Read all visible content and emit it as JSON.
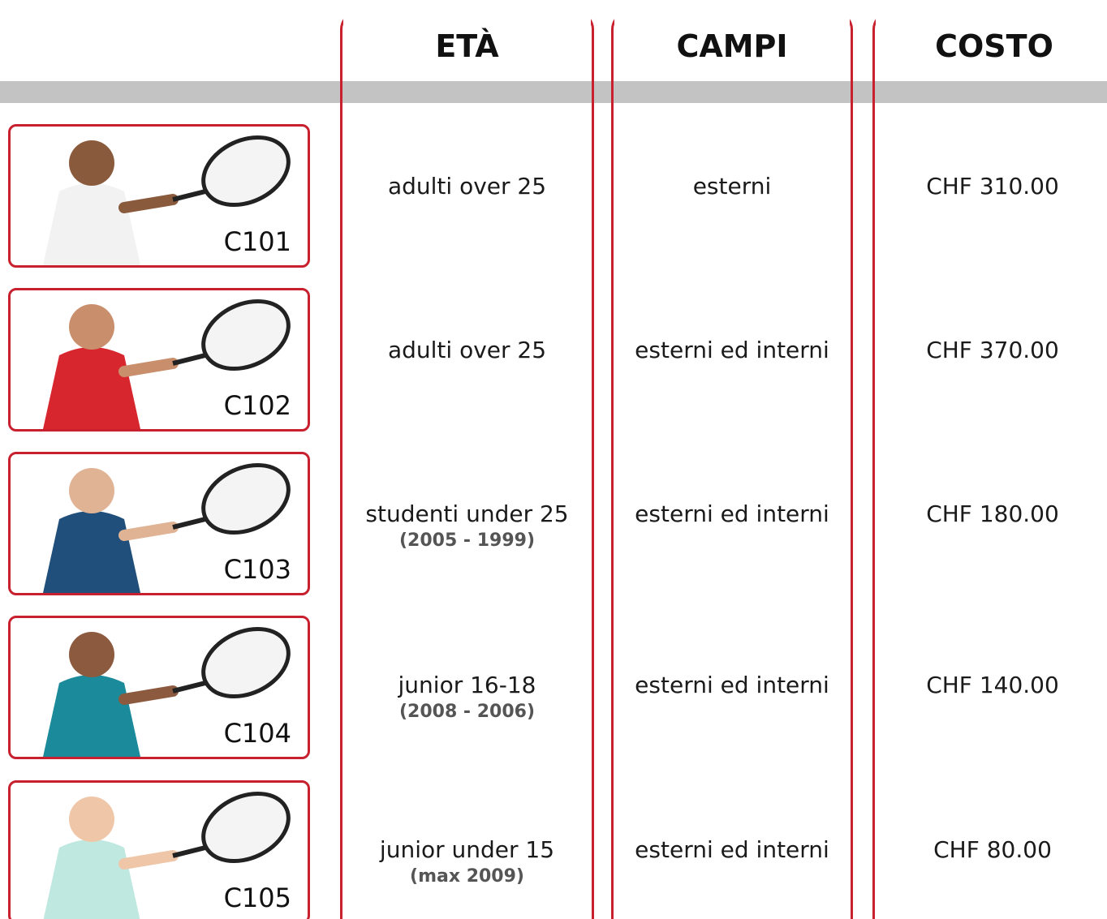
{
  "header": {
    "columns": [
      "ETÀ",
      "CAMPI",
      "COSTO"
    ]
  },
  "rows": [
    {
      "code": "C101",
      "age": "adulti over 25",
      "courts": "esterni",
      "cost": "CHF 310.00"
    },
    {
      "code": "C102",
      "age": "adulti over 25",
      "courts": "esterni ed interni",
      "cost": "CHF 370.00"
    },
    {
      "code": "C103",
      "age": "studenti under 25",
      "age_note": "(2005 - 1999)",
      "courts": "esterni ed interni",
      "cost": "CHF 180.00"
    },
    {
      "code": "C104",
      "age": "junior 16-18",
      "age_note": "(2008 - 2006)",
      "courts": "esterni ed interni",
      "cost": "CHF 140.00"
    },
    {
      "code": "C105",
      "age": "junior under 15",
      "age_note": "(max 2009)",
      "courts": "esterni ed interni",
      "cost": "CHF 80.00"
    }
  ]
}
